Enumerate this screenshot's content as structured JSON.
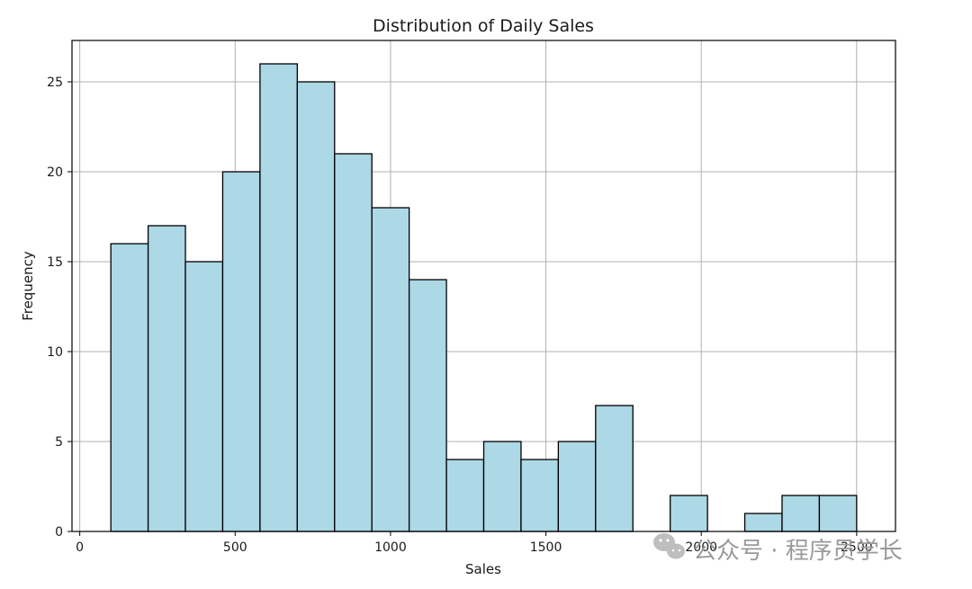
{
  "chart_data": {
    "type": "bar",
    "title": "Distribution of Daily Sales",
    "xlabel": "Sales",
    "ylabel": "Frequency",
    "xlim": [
      -25,
      2625
    ],
    "ylim": [
      0,
      27.3
    ],
    "xticks": [
      0,
      500,
      1000,
      1500,
      2000,
      2500
    ],
    "yticks": [
      0,
      5,
      10,
      15,
      20,
      25
    ],
    "grid": true,
    "bin_start": 100,
    "bin_width": 120,
    "counts": [
      16,
      17,
      15,
      20,
      26,
      25,
      21,
      18,
      14,
      4,
      5,
      4,
      5,
      7,
      0,
      2,
      0,
      1,
      2,
      2
    ],
    "bar_color": "#add8e6",
    "edge_color": "#000000"
  },
  "watermark": {
    "text": "公众号 · 程序员学长",
    "icon": "wechat-icon"
  }
}
